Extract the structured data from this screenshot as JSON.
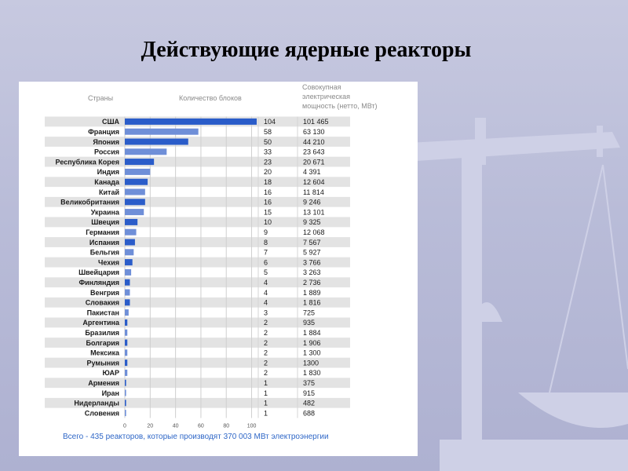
{
  "slide": {
    "title": "Действующие ядерные реакторы",
    "footnote": "Всего - 435 реакторов, которые производят 370 003 МВт электроэнергии"
  },
  "colors": {
    "bar_dark": "#2a5cc9",
    "bar_light": "#6f8fd8",
    "row_band": "#e3e3e3",
    "header_text": "#8a8a8a",
    "footnote_text": "#2f67c7"
  },
  "chart_data": {
    "type": "bar",
    "orientation": "horizontal",
    "column_headers": {
      "country": "Страны",
      "blocks": "Количество блоков",
      "capacity": "Совокупная электрическая мощность (нетто, МВт)"
    },
    "capacity_header_lines": [
      "Совокупная",
      "электрическая",
      "мощность (нетто, МВт)"
    ],
    "categories": [
      "США",
      "Франция",
      "Япония",
      "Россия",
      "Республика Корея",
      "Индия",
      "Канада",
      "Китай",
      "Великобритания",
      "Украина",
      "Швеция",
      "Германия",
      "Испания",
      "Бельгия",
      "Чехия",
      "Швейцария",
      "Финляндия",
      "Венгрия",
      "Словакия",
      "Пакистан",
      "Аргентина",
      "Бразилия",
      "Болгария",
      "Мексика",
      "Румыния",
      "ЮАР",
      "Армения",
      "Иран",
      "Нидерланды",
      "Словения"
    ],
    "series": [
      {
        "values": [
          104,
          58,
          50,
          33,
          23,
          20,
          18,
          16,
          16,
          15,
          10,
          9,
          8,
          7,
          6,
          5,
          4,
          4,
          4,
          3,
          2,
          2,
          2,
          2,
          2,
          2,
          1,
          1,
          1,
          1
        ]
      }
    ],
    "capacity_labels": [
      "101 465",
      "63 130",
      "44 210",
      "23 643",
      "20 671",
      "4 391",
      "12 604",
      "11 814",
      "9 246",
      "13 101",
      "9 325",
      "12 068",
      "7 567",
      "5 927",
      "3 766",
      "3 263",
      "2 736",
      "1 889",
      "1 816",
      "725",
      "935",
      "1 884",
      "1 906",
      "1 300",
      "1300",
      "1 830",
      "375",
      "915",
      "482",
      "688"
    ],
    "x_ticks": [
      0,
      20,
      40,
      60,
      80,
      100
    ],
    "xlim": [
      0,
      104
    ],
    "grid": true
  }
}
